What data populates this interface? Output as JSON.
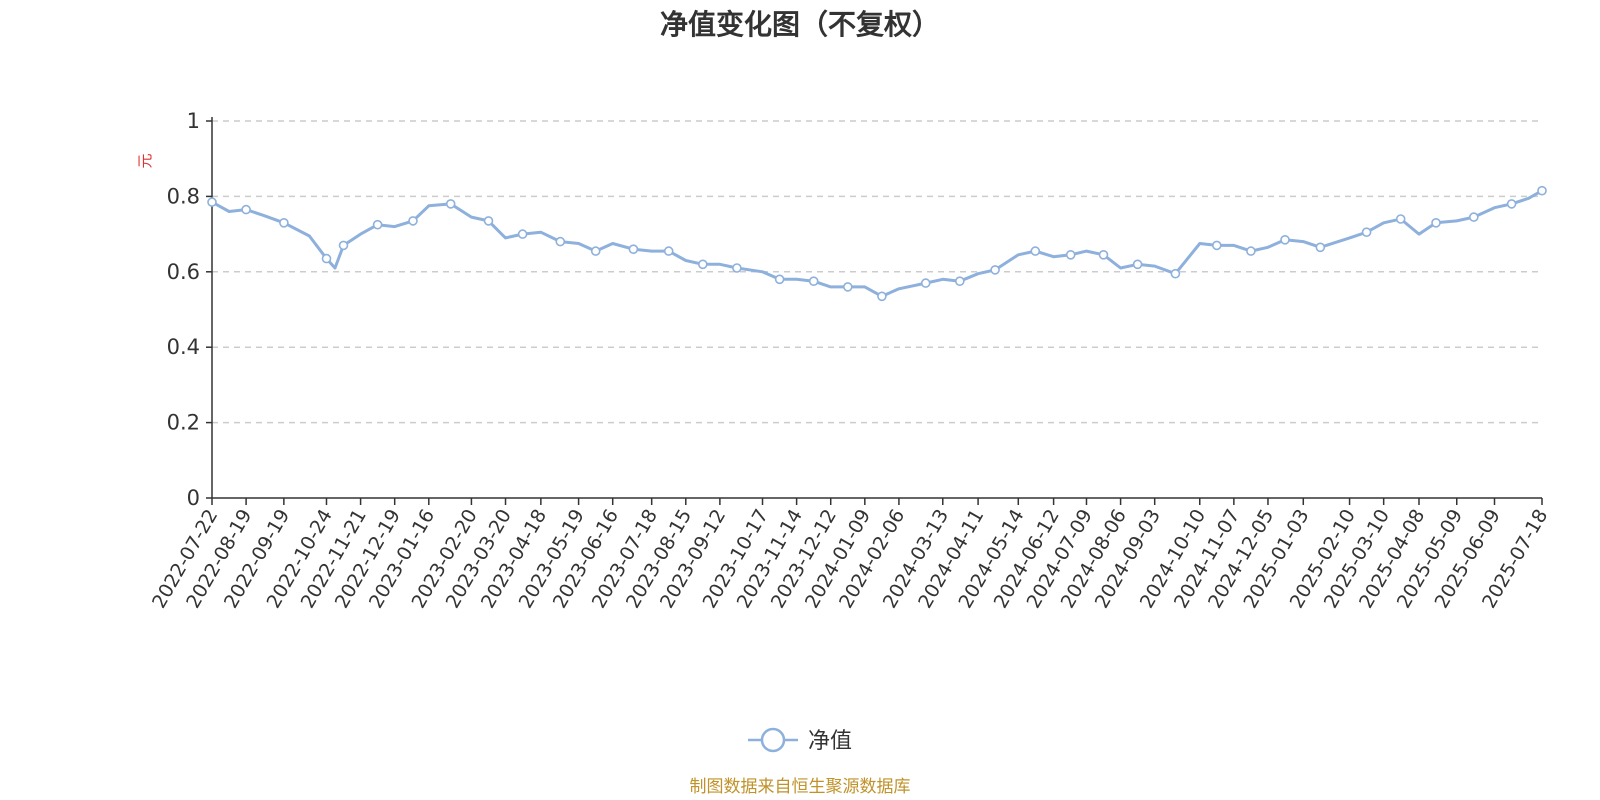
{
  "chart_data": {
    "type": "line",
    "title": "净值变化图（不复权）",
    "ylabel": "元",
    "ylim": [
      0,
      1
    ],
    "y_ticks": [
      "0",
      "0.2",
      "0.4",
      "0.6",
      "0.8",
      "1"
    ],
    "grid": "horizontal dashed",
    "legend_position": "bottom-center",
    "categories": [
      "2022-07-22",
      "2022-08-19",
      "2022-09-19",
      "2022-10-24",
      "2022-11-21",
      "2022-12-19",
      "2023-01-16",
      "2023-02-20",
      "2023-03-20",
      "2023-04-18",
      "2023-05-19",
      "2023-06-16",
      "2023-07-18",
      "2023-08-15",
      "2023-09-12",
      "2023-10-17",
      "2023-11-14",
      "2023-12-12",
      "2024-01-09",
      "2024-02-06",
      "2024-03-13",
      "2024-04-11",
      "2024-05-14",
      "2024-06-12",
      "2024-07-09",
      "2024-08-06",
      "2024-09-03",
      "2024-10-10",
      "2024-11-07",
      "2024-12-05",
      "2025-01-03",
      "2025-02-10",
      "2025-03-10",
      "2025-04-08",
      "2025-05-09",
      "2025-06-09",
      "2025-07-18"
    ],
    "series": [
      {
        "name": "净值",
        "color": "#8eb0dc",
        "x": [
          "2022-07-22",
          "2022-08-05",
          "2022-08-19",
          "2022-09-02",
          "2022-09-19",
          "2022-10-10",
          "2022-10-24",
          "2022-10-31",
          "2022-11-07",
          "2022-11-21",
          "2022-12-05",
          "2022-12-19",
          "2023-01-03",
          "2023-01-16",
          "2023-02-03",
          "2023-02-20",
          "2023-03-06",
          "2023-03-20",
          "2023-04-03",
          "2023-04-18",
          "2023-05-04",
          "2023-05-19",
          "2023-06-02",
          "2023-06-16",
          "2023-07-03",
          "2023-07-18",
          "2023-08-01",
          "2023-08-15",
          "2023-08-29",
          "2023-09-12",
          "2023-09-26",
          "2023-10-17",
          "2023-10-31",
          "2023-11-14",
          "2023-11-28",
          "2023-12-12",
          "2023-12-26",
          "2024-01-09",
          "2024-01-23",
          "2024-02-06",
          "2024-02-28",
          "2024-03-13",
          "2024-03-27",
          "2024-04-11",
          "2024-04-25",
          "2024-05-14",
          "2024-05-28",
          "2024-06-12",
          "2024-06-26",
          "2024-07-09",
          "2024-07-23",
          "2024-08-06",
          "2024-08-20",
          "2024-09-03",
          "2024-09-20",
          "2024-10-10",
          "2024-10-24",
          "2024-11-07",
          "2024-11-21",
          "2024-12-05",
          "2024-12-19",
          "2025-01-03",
          "2025-01-17",
          "2025-02-10",
          "2025-02-24",
          "2025-03-10",
          "2025-03-24",
          "2025-04-08",
          "2025-04-22",
          "2025-05-09",
          "2025-05-23",
          "2025-06-09",
          "2025-06-23",
          "2025-07-07",
          "2025-07-18"
        ],
        "values": [
          0.785,
          0.76,
          0.765,
          0.75,
          0.73,
          0.695,
          0.635,
          0.61,
          0.67,
          0.7,
          0.725,
          0.72,
          0.735,
          0.775,
          0.78,
          0.745,
          0.735,
          0.69,
          0.7,
          0.705,
          0.68,
          0.675,
          0.655,
          0.675,
          0.66,
          0.655,
          0.655,
          0.63,
          0.62,
          0.62,
          0.61,
          0.6,
          0.58,
          0.58,
          0.575,
          0.56,
          0.56,
          0.56,
          0.535,
          0.555,
          0.57,
          0.58,
          0.575,
          0.595,
          0.605,
          0.645,
          0.655,
          0.64,
          0.645,
          0.655,
          0.645,
          0.61,
          0.62,
          0.615,
          0.595,
          0.675,
          0.67,
          0.67,
          0.655,
          0.665,
          0.685,
          0.68,
          0.665,
          0.69,
          0.705,
          0.73,
          0.74,
          0.7,
          0.73,
          0.735,
          0.745,
          0.77,
          0.78,
          0.795,
          0.815
        ]
      }
    ]
  },
  "legend": {
    "label": "净值"
  },
  "source": {
    "text": "制图数据来自恒生聚源数据库",
    "color": "#c0922a"
  },
  "colors": {
    "line": "#8eb0dc",
    "unit": "#e03030",
    "axis": "#333333",
    "grid": "#cccccc"
  }
}
